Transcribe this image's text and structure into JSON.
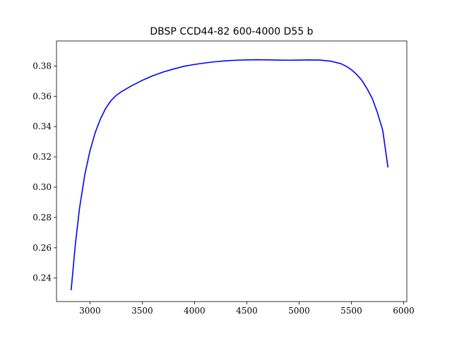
{
  "chart_data": {
    "type": "line",
    "title": "DBSP CCD44-82 600-4000 D55 b",
    "xlabel": "",
    "ylabel": "",
    "xlim": [
      2680,
      6030
    ],
    "ylim": [
      0.2245,
      0.3965
    ],
    "xticks": [
      3000,
      3500,
      4000,
      4500,
      5000,
      5500,
      6000
    ],
    "yticks": [
      0.24,
      0.26,
      0.28,
      0.3,
      0.32,
      0.34,
      0.36,
      0.38
    ],
    "xtick_labels": [
      "3000",
      "3500",
      "4000",
      "4500",
      "5000",
      "5500",
      "6000"
    ],
    "ytick_labels": [
      "0.24",
      "0.26",
      "0.28",
      "0.30",
      "0.32",
      "0.34",
      "0.36",
      "0.38"
    ],
    "grid": false,
    "series": [
      {
        "color": "#0000ff",
        "x": [
          2820,
          2860,
          2900,
          2950,
          3000,
          3050,
          3100,
          3150,
          3200,
          3250,
          3300,
          3400,
          3500,
          3600,
          3700,
          3800,
          3900,
          4000,
          4100,
          4200,
          4300,
          4400,
          4500,
          4600,
          4700,
          4800,
          4900,
          5000,
          5100,
          5200,
          5300,
          5400,
          5450,
          5500,
          5550,
          5600,
          5650,
          5700,
          5750,
          5800,
          5850
        ],
        "y": [
          0.232,
          0.262,
          0.286,
          0.308,
          0.324,
          0.336,
          0.345,
          0.352,
          0.357,
          0.3605,
          0.363,
          0.367,
          0.3705,
          0.3735,
          0.376,
          0.378,
          0.3798,
          0.381,
          0.382,
          0.3828,
          0.3834,
          0.3838,
          0.384,
          0.3841,
          0.384,
          0.3839,
          0.3838,
          0.3839,
          0.384,
          0.3839,
          0.3832,
          0.3815,
          0.3798,
          0.3775,
          0.3745,
          0.3705,
          0.365,
          0.3585,
          0.349,
          0.3375,
          0.313
        ]
      }
    ]
  }
}
